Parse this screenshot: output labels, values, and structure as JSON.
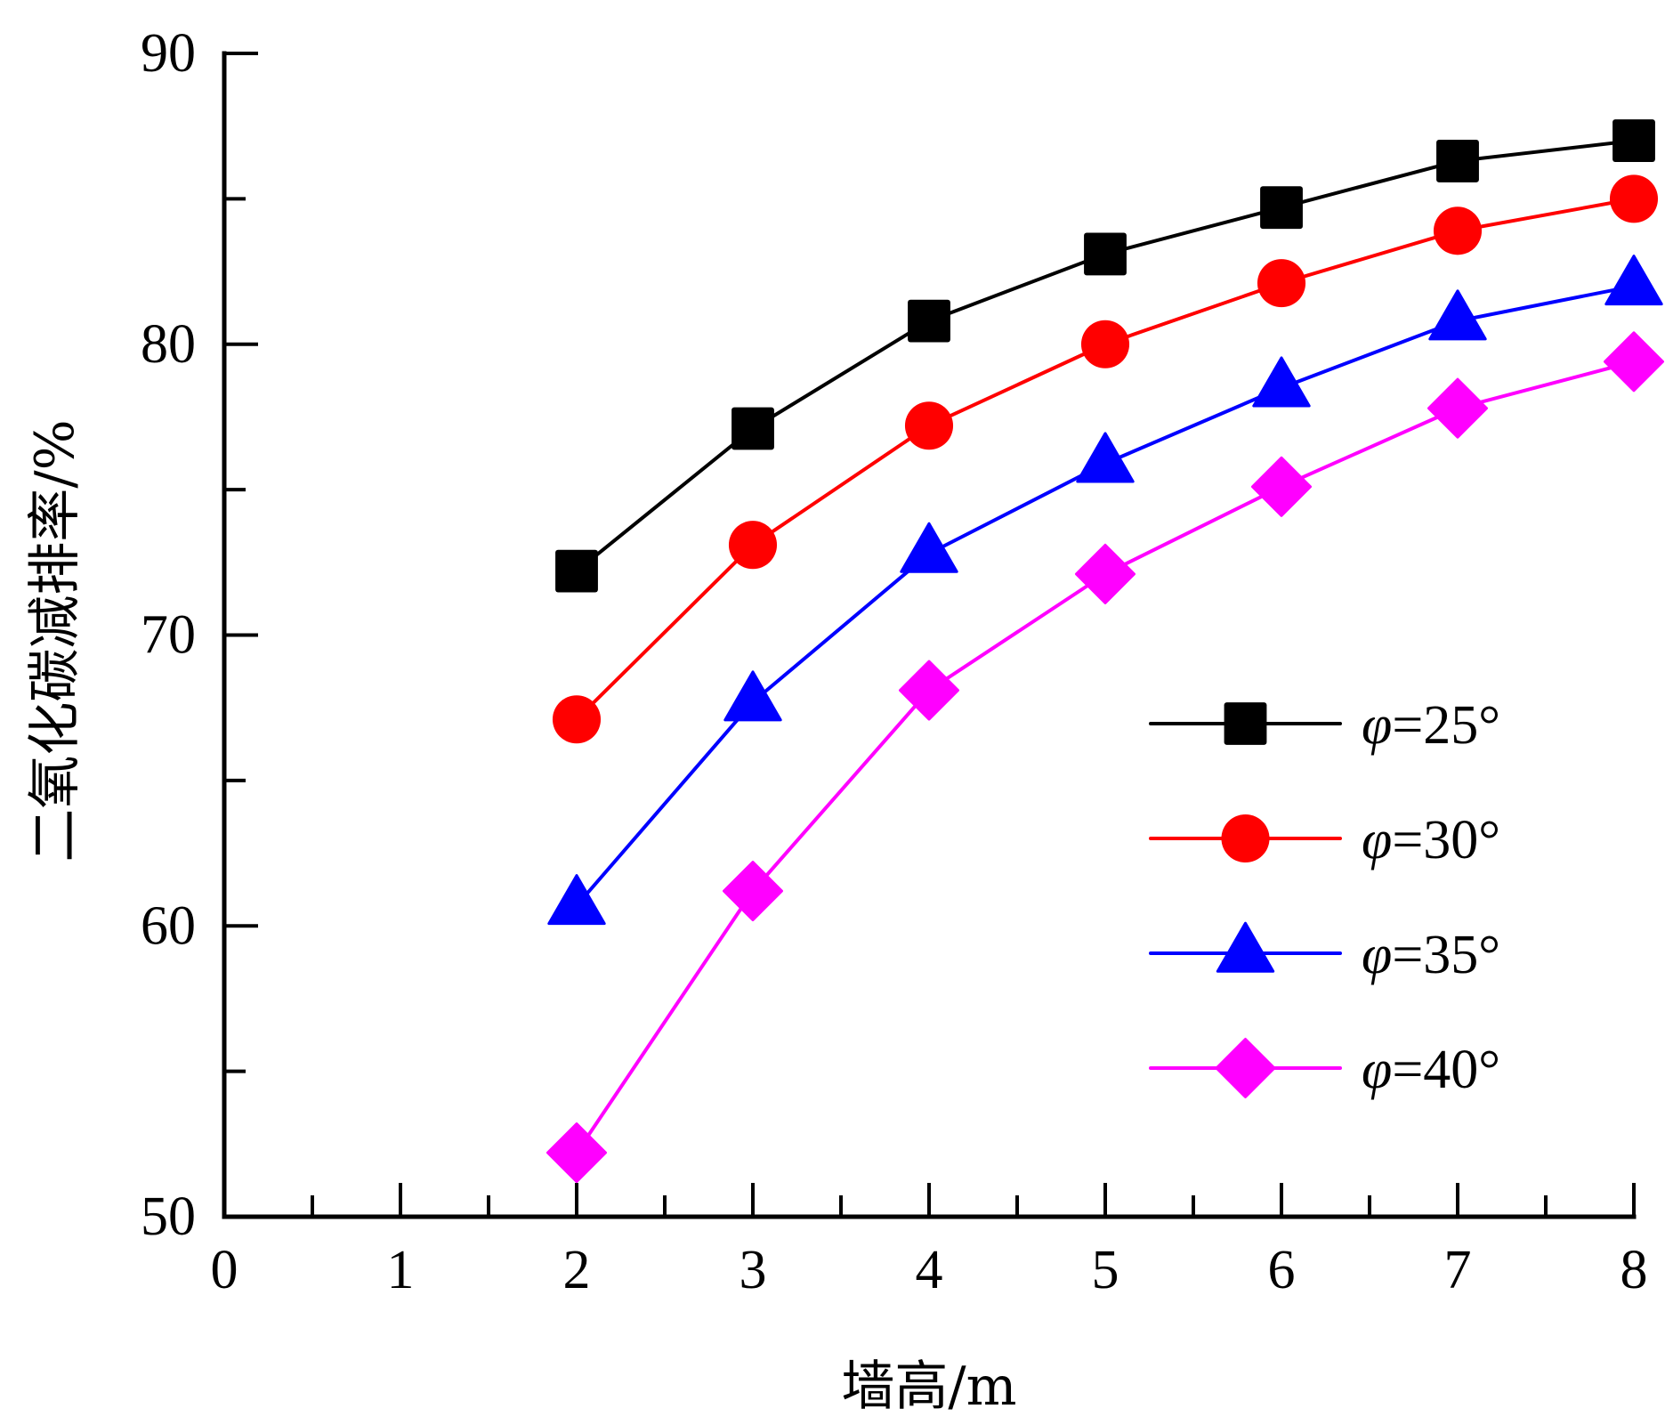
{
  "chart_data": {
    "type": "line",
    "title": "",
    "xlabel": "墙高/m",
    "ylabel": "二氧化碳减排率/%",
    "xlim": [
      0,
      8
    ],
    "ylim": [
      50,
      90
    ],
    "x_ticks": [
      "0",
      "1",
      "2",
      "3",
      "4",
      "5",
      "6",
      "7",
      "8"
    ],
    "x_tick_values": [
      0,
      1,
      2,
      3,
      4,
      5,
      6,
      7,
      8
    ],
    "x_minor_step": 0.5,
    "y_ticks": [
      "50",
      "60",
      "70",
      "80",
      "90"
    ],
    "y_tick_values": [
      50,
      60,
      70,
      80,
      90
    ],
    "y_minor_step": 5,
    "grid": false,
    "legend_position": "right",
    "x": [
      2,
      3,
      4,
      5,
      6,
      7,
      8
    ],
    "series": [
      {
        "name": "φ=25°",
        "label_var": "φ",
        "label_rest": "=25°",
        "color": "#000000",
        "marker": "square",
        "values": [
          72.2,
          77.1,
          80.8,
          83.1,
          84.7,
          86.3,
          87.0
        ]
      },
      {
        "name": "φ=30°",
        "label_var": "φ",
        "label_rest": "=30°",
        "color": "#ff0000",
        "marker": "circle",
        "values": [
          67.1,
          73.1,
          77.2,
          80.0,
          82.1,
          83.9,
          85.0
        ]
      },
      {
        "name": "φ=35°",
        "label_var": "φ",
        "label_rest": "=35°",
        "color": "#0000ff",
        "marker": "triangle",
        "values": [
          60.7,
          67.7,
          72.8,
          75.9,
          78.5,
          80.8,
          82.0
        ]
      },
      {
        "name": "φ=40°",
        "label_var": "φ",
        "label_rest": "=40°",
        "color": "#ff00ff",
        "marker": "diamond",
        "values": [
          52.2,
          61.2,
          68.1,
          72.1,
          75.1,
          77.8,
          79.4
        ]
      }
    ]
  }
}
